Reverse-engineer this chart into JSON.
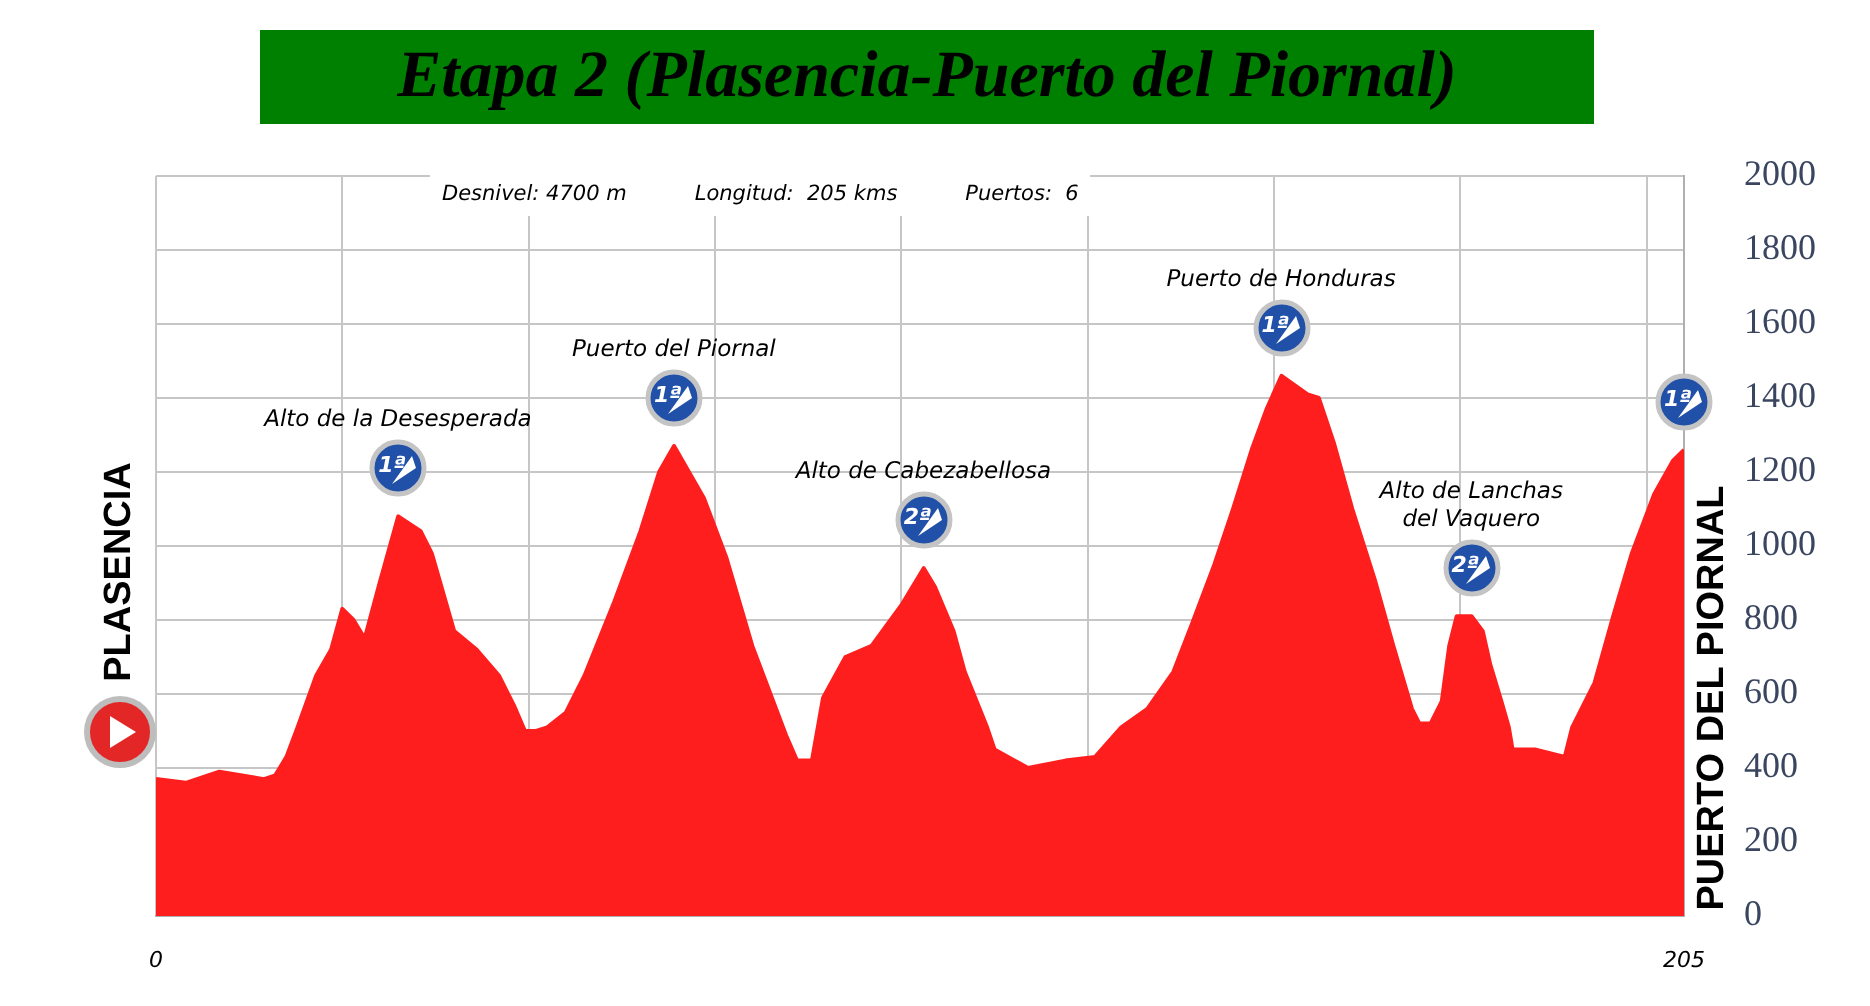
{
  "chart_data": {
    "type": "area",
    "title": "Etapa 2 (Plasencia-Puerto del Piornal)",
    "annotations": [
      {
        "text": "PLASENCIA",
        "x": 0,
        "y": 370
      },
      "Desnivel: 4700 m",
      "Longitud:  205 kms",
      "Puertos:  6",
      "Alto de la Desesperada",
      {
        "text": "1ª",
        "x": 32.5,
        "y": 1080
      },
      "Puerto del Piornal",
      {
        "text": "1ª",
        "x": 69.5,
        "y": 1270
      },
      "Alto de Cabezabellosa",
      {
        "text": "2ª",
        "x": 103,
        "y": 940
      },
      "Puerto de Honduras",
      {
        "text": "1ª",
        "x": 151,
        "y": 1460
      },
      "Alto de Lanchas\ndel Vaquero",
      {
        "text": "2ª",
        "x": 176.5,
        "y": 810
      },
      {
        "text": "PUERTO DEL PIORNAL",
        "x": 205,
        "y": 1260
      },
      {
        "text": "1ª",
        "x": 205,
        "y": 1260
      }
    ],
    "x": [
      0,
      4,
      8.5,
      14.5,
      16,
      17.5,
      19,
      21.5,
      23.5,
      25,
      26.5,
      28,
      30,
      32.5,
      35.5,
      37,
      40,
      43,
      46,
      48,
      49.5,
      51,
      52.5,
      55,
      57.5,
      61.5,
      65,
      67.5,
      69.5,
      73.5,
      76.5,
      80,
      84.5,
      86,
      88,
      89.5,
      92.5,
      96,
      100,
      103,
      104.5,
      107,
      108.5,
      111.5,
      112.5,
      117,
      122,
      126,
      129.5,
      133,
      136.5,
      139,
      142,
      144.5,
      147,
      149,
      151,
      154.5,
      156,
      158,
      160.5,
      163.5,
      166,
      168.5,
      169.5,
      171,
      172.5,
      173.5,
      174.5,
      176.5,
      178,
      179,
      180.5,
      181.5,
      182,
      185,
      189,
      190,
      193,
      195.5,
      198,
      201,
      203.5,
      205
    ],
    "values": [
      370,
      360,
      390,
      370,
      380,
      430,
      510,
      650,
      720,
      830,
      800,
      750,
      900,
      1080,
      1040,
      980,
      770,
      720,
      650,
      570,
      500,
      500,
      510,
      550,
      650,
      850,
      1040,
      1200,
      1270,
      1130,
      970,
      730,
      490,
      420,
      420,
      590,
      700,
      730,
      840,
      940,
      890,
      770,
      660,
      510,
      450,
      400,
      420,
      430,
      510,
      560,
      660,
      790,
      950,
      1100,
      1260,
      1370,
      1460,
      1410,
      1400,
      1280,
      1100,
      910,
      730,
      560,
      520,
      520,
      580,
      730,
      810,
      810,
      770,
      680,
      580,
      510,
      450,
      450,
      430,
      510,
      630,
      810,
      980,
      1140,
      1230,
      1260
    ],
    "color": "#ff1e1e",
    "xlim": [
      0,
      205
    ],
    "xticks": [
      0,
      {
        "value": 25,
        "label": null
      },
      {
        "value": 50,
        "label": null
      },
      {
        "value": 75,
        "label": null
      },
      {
        "value": 100,
        "label": null
      },
      {
        "value": 125,
        "label": null
      },
      {
        "value": 150,
        "label": null
      },
      {
        "value": 175,
        "label": null
      },
      {
        "value": 200,
        "label": null
      },
      205
    ],
    "ylim": [
      0,
      2000
    ],
    "yticks": [
      0,
      200,
      400,
      600,
      800,
      1000,
      1200,
      1400,
      1600,
      1800,
      2000
    ],
    "grid": true
  }
}
